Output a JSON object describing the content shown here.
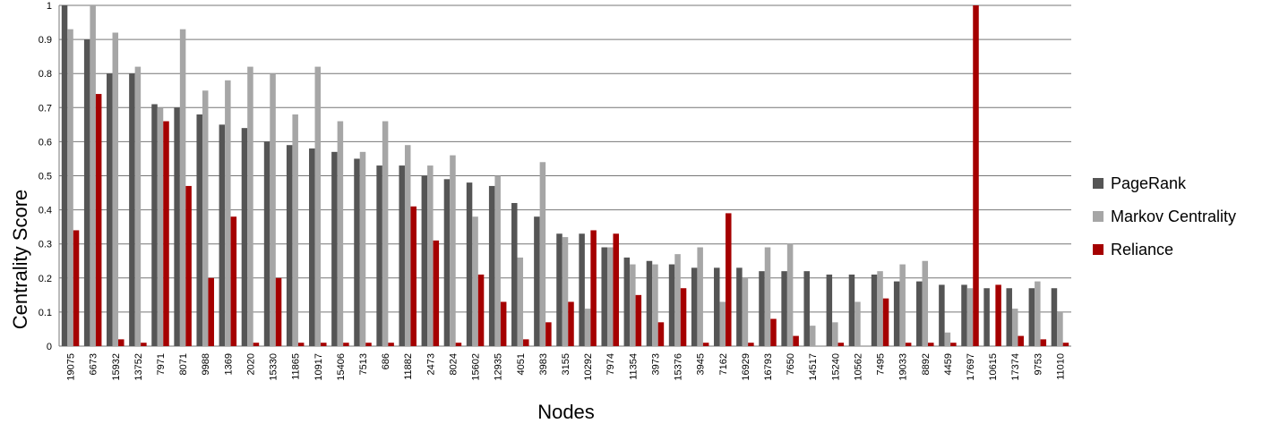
{
  "chart_data": {
    "type": "bar",
    "x_label": "Nodes",
    "y_label": "Centrality  Score",
    "categories": [
      "19075",
      "6673",
      "15932",
      "13752",
      "7971",
      "8071",
      "9988",
      "1369",
      "2020",
      "15330",
      "11865",
      "10917",
      "15406",
      "7513",
      "686",
      "11882",
      "2473",
      "8024",
      "15602",
      "12935",
      "4051",
      "3983",
      "3155",
      "10292",
      "7974",
      "11354",
      "3973",
      "15376",
      "3945",
      "7162",
      "16929",
      "16793",
      "7650",
      "14517",
      "15240",
      "10562",
      "7495",
      "19033",
      "8892",
      "4459",
      "17697",
      "10615",
      "17374",
      "9753",
      "11010"
    ],
    "series": [
      {
        "name": "PageRank",
        "color": "#555555",
        "values": [
          1,
          0.9,
          0.8,
          0.8,
          0.71,
          0.7,
          0.68,
          0.65,
          0.64,
          0.6,
          0.59,
          0.58,
          0.57,
          0.55,
          0.53,
          0.53,
          0.5,
          0.49,
          0.48,
          0.47,
          0.42,
          0.38,
          0.33,
          0.33,
          0.29,
          0.26,
          0.25,
          0.24,
          0.23,
          0.23,
          0.23,
          0.22,
          0.22,
          0.22,
          0.21,
          0.21,
          0.21,
          0.19,
          0.19,
          0.18,
          0.18,
          0.17,
          0.17,
          0.17,
          0.17
        ]
      },
      {
        "name": "Markov Centrality",
        "color": "#a6a6a6",
        "values": [
          0.93,
          1,
          0.92,
          0.82,
          0.7,
          0.93,
          0.75,
          0.78,
          0.82,
          0.8,
          0.68,
          0.82,
          0.66,
          0.57,
          0.66,
          0.59,
          0.53,
          0.56,
          0.38,
          0.5,
          0.26,
          0.54,
          0.32,
          0.11,
          0.29,
          0.24,
          0.24,
          0.27,
          0.29,
          0.13,
          0.2,
          0.29,
          0.3,
          0.06,
          0.07,
          0.13,
          0.22,
          0.24,
          0.25,
          0.04,
          0.17,
          0,
          0.11,
          0.19,
          0.1
        ]
      },
      {
        "name": "Reliance",
        "color": "#a50000",
        "values": [
          0.34,
          0.74,
          0.02,
          0.01,
          0.66,
          0.47,
          0.2,
          0.38,
          0.01,
          0.2,
          0.01,
          0.01,
          0.01,
          0.01,
          0.01,
          0.41,
          0.31,
          0.01,
          0.21,
          0.13,
          0.02,
          0.07,
          0.13,
          0.34,
          0.33,
          0.15,
          0.07,
          0.17,
          0.01,
          0.39,
          0.01,
          0.08,
          0.03,
          0,
          0.01,
          0,
          0.14,
          0.01,
          0.01,
          0.01,
          1,
          0.18,
          0.03,
          0.02,
          0.01
        ]
      }
    ],
    "ylim": [
      0,
      1
    ],
    "yticks": [
      0,
      0.1,
      0.2,
      0.3,
      0.4,
      0.5,
      0.6,
      0.7,
      0.8,
      0.9,
      1
    ],
    "grid": true,
    "legend": "right"
  }
}
